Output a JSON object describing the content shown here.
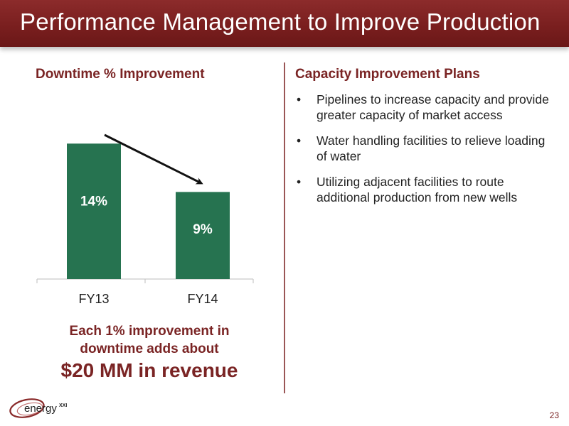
{
  "slide": {
    "title": "Performance Management to Improve Production",
    "page_number": "23"
  },
  "left": {
    "heading": "Downtime % Improvement",
    "callout": {
      "line1": "Each 1% improvement in",
      "line2": "downtime adds about",
      "line3": "$20 MM in revenue"
    }
  },
  "right": {
    "heading": "Capacity Improvement Plans",
    "bullet_symbol": "•",
    "bullets": [
      "Pipelines to increase capacity and provide greater capacity of market access",
      "Water handling facilities to relieve loading of water",
      "Utilizing adjacent facilities to route additional production from new wells"
    ]
  },
  "logo": {
    "text": "energy",
    "superscript": "XXI"
  },
  "colors": {
    "title_bar": "#7a1f1f",
    "heading": "#7a2424",
    "bar": "#267350"
  },
  "chart_data": {
    "type": "bar",
    "categories": [
      "FY13",
      "FY14"
    ],
    "values": [
      14,
      9
    ],
    "data_labels": [
      "14%",
      "9%"
    ],
    "ylim": [
      0,
      16
    ],
    "title": "",
    "xlabel": "",
    "ylabel": "",
    "grid": false,
    "annotations": [
      "downward trend arrow from FY13 to FY14"
    ]
  }
}
